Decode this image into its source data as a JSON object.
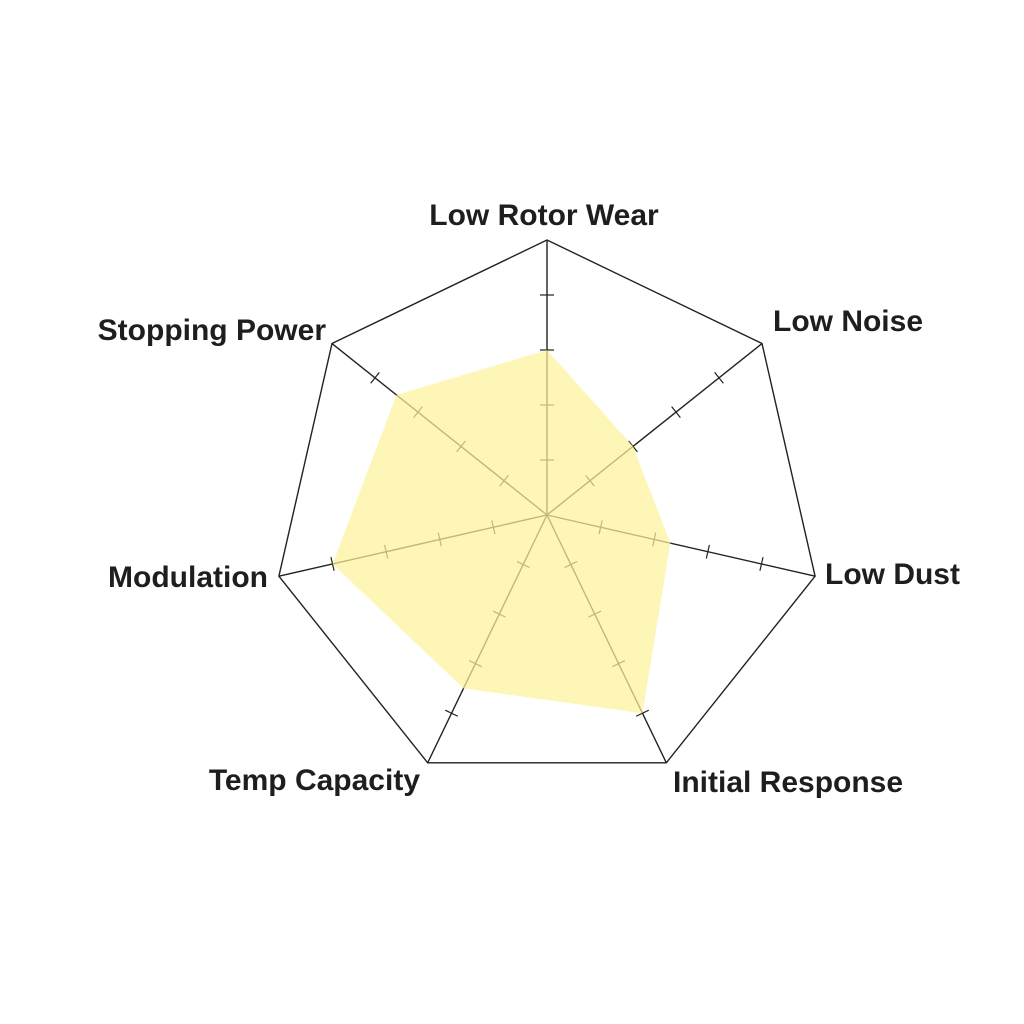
{
  "chart_data": {
    "type": "radar",
    "title": "",
    "axes": [
      "Low Rotor Wear",
      "Low Noise",
      "Low Dust",
      "Initial Response",
      "Temp Capacity",
      "Modulation",
      "Stopping Power"
    ],
    "range": [
      0,
      5
    ],
    "ticks": [
      1,
      2,
      3,
      4
    ],
    "series": [
      {
        "values": [
          3,
          2,
          2.3,
          4,
          3.5,
          4,
          3.5
        ],
        "color": "#fdf39a"
      }
    ],
    "grid": true,
    "legend": "none"
  }
}
